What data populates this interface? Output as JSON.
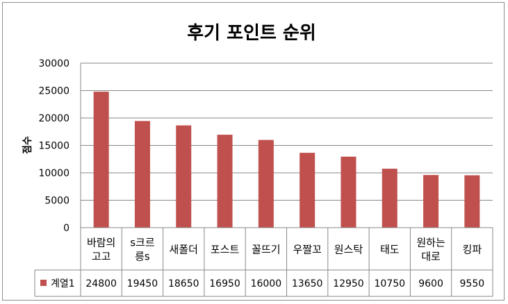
{
  "chart_data": {
    "type": "bar",
    "title": "후기 포인트 순위",
    "ylabel": "점수",
    "xlabel": "",
    "ylim": [
      0,
      30000
    ],
    "yticks": [
      "0",
      "5000",
      "10000",
      "15000",
      "20000",
      "25000",
      "30000"
    ],
    "grid": true,
    "categories": [
      [
        "바람의",
        "고고"
      ],
      [
        "s크르",
        "릉s"
      ],
      [
        "새폴더"
      ],
      [
        "포스트"
      ],
      [
        "꼴뜨기"
      ],
      [
        "우짤꼬"
      ],
      [
        "원스탁"
      ],
      [
        "태도"
      ],
      [
        "원하는",
        "대로"
      ],
      [
        "킹파"
      ]
    ],
    "series": [
      {
        "name": "계열1",
        "values": [
          24800,
          19450,
          18650,
          16950,
          16000,
          13650,
          12950,
          10750,
          9600,
          9550
        ]
      }
    ],
    "data_table": true,
    "colors": {
      "bar": "#C0504D",
      "grid": "#878787",
      "table_border": "#878787"
    }
  }
}
